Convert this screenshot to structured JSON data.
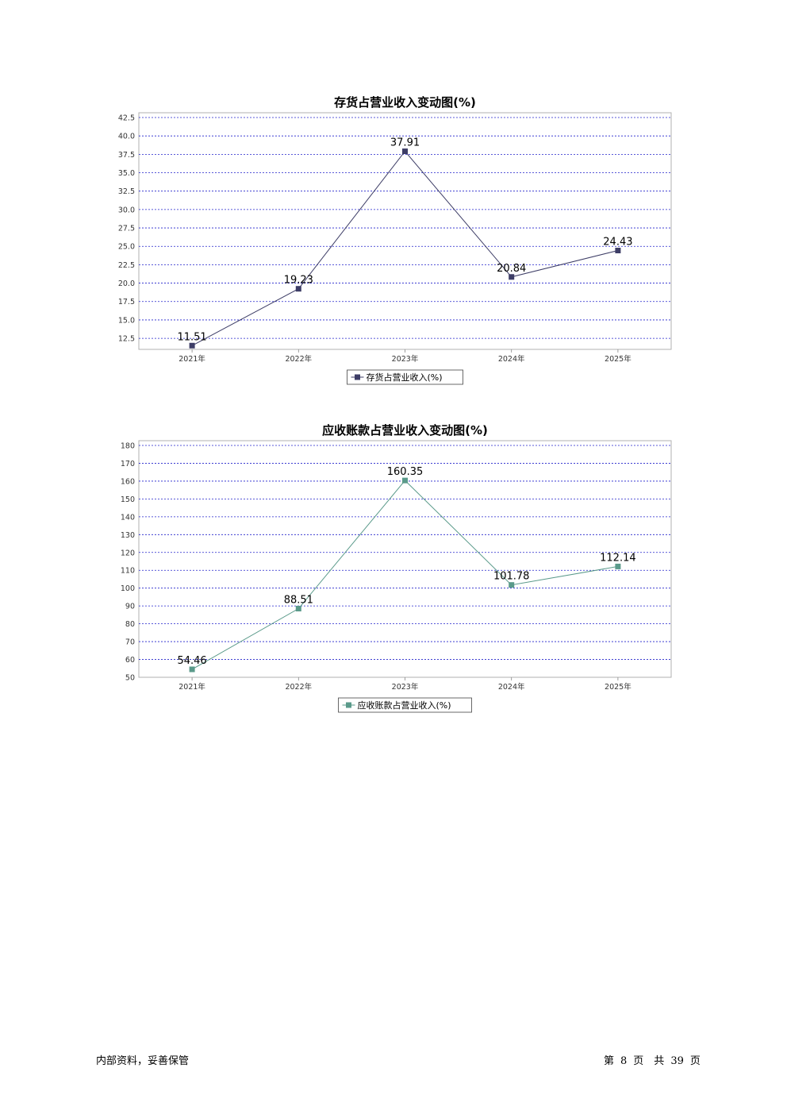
{
  "chart_data": [
    {
      "type": "line",
      "title": "存货占营业收入变动图(%)",
      "categories": [
        "2021年",
        "2022年",
        "2023年",
        "2024年",
        "2025年"
      ],
      "series": [
        {
          "name": "存货占营业收入(%)",
          "values": [
            11.51,
            19.23,
            37.91,
            20.84,
            24.43
          ],
          "color": "#3d3d66"
        }
      ],
      "ylim": [
        11.0,
        42.5
      ],
      "yticks": [
        12.5,
        15.0,
        17.5,
        20.0,
        22.5,
        25.0,
        27.5,
        30.0,
        32.5,
        35.0,
        37.5,
        40.0,
        42.5
      ],
      "ytick_labels": [
        "12.5",
        "15.0",
        "17.5",
        "20.0",
        "22.5",
        "25.0",
        "27.5",
        "30.0",
        "32.5",
        "35.0",
        "37.5",
        "40.0",
        "42.5"
      ],
      "grid": true,
      "grid_color": "#2222cc",
      "legend": "bottom"
    },
    {
      "type": "line",
      "title": "应收账款占营业收入变动图(%)",
      "categories": [
        "2021年",
        "2022年",
        "2023年",
        "2024年",
        "2025年"
      ],
      "series": [
        {
          "name": "应收账款占营业收入(%)",
          "values": [
            54.46,
            88.51,
            160.35,
            101.78,
            112.14
          ],
          "color": "#5a9a8a"
        }
      ],
      "ylim": [
        50,
        180
      ],
      "yticks": [
        50,
        60,
        70,
        80,
        90,
        100,
        110,
        120,
        130,
        140,
        150,
        160,
        170,
        180
      ],
      "ytick_labels": [
        "50",
        "60",
        "70",
        "80",
        "90",
        "100",
        "110",
        "120",
        "130",
        "140",
        "150",
        "160",
        "170",
        "180"
      ],
      "grid": true,
      "grid_color": "#2222cc",
      "legend": "bottom"
    }
  ],
  "footer": {
    "left": "内部资料，妥善保管",
    "page_prefix": "第",
    "page_number": "8",
    "page_mid": "页　共",
    "page_total": "39",
    "page_suffix": "页"
  }
}
